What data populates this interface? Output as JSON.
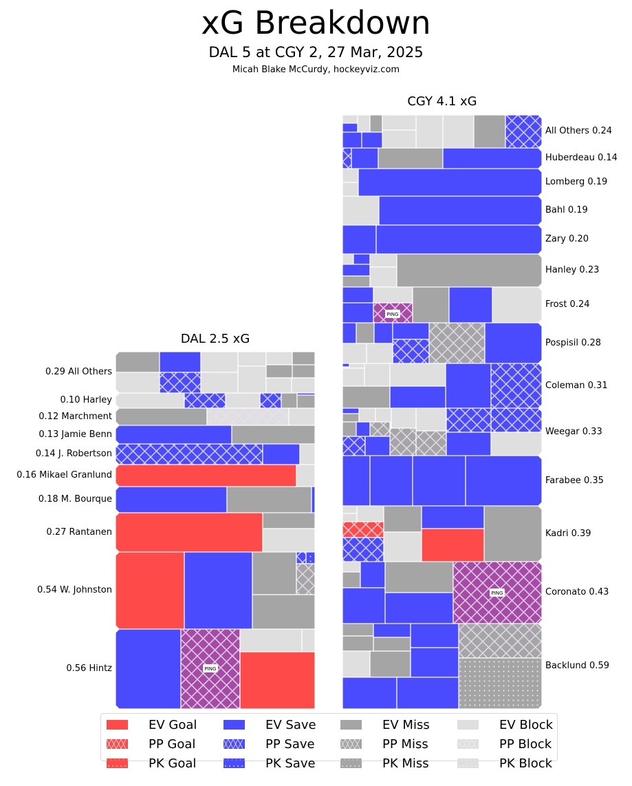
{
  "header": {
    "title": "xG Breakdown",
    "subtitle": "DAL 5 at CGY 2, 27 Mar, 2025",
    "credit": "Micah Blake McCurdy, hockeyviz.com"
  },
  "colors": {
    "goal": "#ff4a4a",
    "save": "#4a4aff",
    "miss": "#a5a5a5",
    "block": "#dfdfdf",
    "penalty_drawn": "#a54aa5",
    "separator": "#ffffff"
  },
  "chart_data": [
    {
      "type": "treemap",
      "title": "DAL 2.5 xG",
      "team": "DAL",
      "total_xg": 2.5,
      "label_side": "left",
      "players": [
        {
          "name": "All Others",
          "xg": 0.29,
          "label": "0.29 All Others"
        },
        {
          "name": "Harley",
          "xg": 0.1,
          "label": "0.10 Harley"
        },
        {
          "name": "Marchment",
          "xg": 0.12,
          "label": "0.12 Marchment"
        },
        {
          "name": "Jamie Benn",
          "xg": 0.13,
          "label": "0.13 Jamie Benn"
        },
        {
          "name": "J. Robertson",
          "xg": 0.14,
          "label": "0.14 J. Robertson"
        },
        {
          "name": "Mikael Granlund",
          "xg": 0.16,
          "label": "0.16 Mikael Granlund"
        },
        {
          "name": "M. Bourque",
          "xg": 0.18,
          "label": "0.18 M. Bourque"
        },
        {
          "name": "Rantanen",
          "xg": 0.27,
          "label": "0.27 Rantanen"
        },
        {
          "name": "W. Johnston",
          "xg": 0.54,
          "label": "0.54 W. Johnston"
        },
        {
          "name": "Hintz",
          "xg": 0.56,
          "label": "0.56 Hintz"
        }
      ],
      "annotations": [
        {
          "player": "Hintz",
          "text": "PING"
        }
      ]
    },
    {
      "type": "treemap",
      "title": "CGY 4.1 xG",
      "team": "CGY",
      "total_xg": 4.1,
      "label_side": "right",
      "players": [
        {
          "name": "All Others",
          "xg": 0.24,
          "label": "All Others 0.24"
        },
        {
          "name": "Huberdeau",
          "xg": 0.14,
          "label": "Huberdeau 0.14"
        },
        {
          "name": "Lomberg",
          "xg": 0.19,
          "label": "Lomberg 0.19"
        },
        {
          "name": "Bahl",
          "xg": 0.19,
          "label": "Bahl 0.19"
        },
        {
          "name": "Zary",
          "xg": 0.2,
          "label": "Zary 0.20"
        },
        {
          "name": "Hanley",
          "xg": 0.23,
          "label": "Hanley 0.23"
        },
        {
          "name": "Frost",
          "xg": 0.24,
          "label": "Frost 0.24"
        },
        {
          "name": "Pospisil",
          "xg": 0.28,
          "label": "Pospisil 0.28"
        },
        {
          "name": "Coleman",
          "xg": 0.31,
          "label": "Coleman 0.31"
        },
        {
          "name": "Weegar",
          "xg": 0.33,
          "label": "Weegar 0.33"
        },
        {
          "name": "Farabee",
          "xg": 0.35,
          "label": "Farabee 0.35"
        },
        {
          "name": "Kadri",
          "xg": 0.39,
          "label": "Kadri 0.39"
        },
        {
          "name": "Coronato",
          "xg": 0.43,
          "label": "Coronato 0.43"
        },
        {
          "name": "Backlund",
          "xg": 0.59,
          "label": "Backlund 0.59"
        }
      ],
      "annotations": [
        {
          "player": "Frost",
          "text": "PING"
        },
        {
          "player": "Coronato",
          "text": "PING"
        }
      ]
    }
  ],
  "legend": {
    "items": [
      {
        "label": "EV Goal",
        "outcome": "goal",
        "state": "EV"
      },
      {
        "label": "PP Goal",
        "outcome": "goal",
        "state": "PP"
      },
      {
        "label": "PK Goal",
        "outcome": "goal",
        "state": "PK"
      },
      {
        "label": "EV Save",
        "outcome": "save",
        "state": "EV"
      },
      {
        "label": "PP Save",
        "outcome": "save",
        "state": "PP"
      },
      {
        "label": "PK Save",
        "outcome": "save",
        "state": "PK"
      },
      {
        "label": "EV Miss",
        "outcome": "miss",
        "state": "EV"
      },
      {
        "label": "PP Miss",
        "outcome": "miss",
        "state": "PP"
      },
      {
        "label": "PK Miss",
        "outcome": "miss",
        "state": "PK"
      },
      {
        "label": "EV Block",
        "outcome": "block",
        "state": "EV"
      },
      {
        "label": "PP Block",
        "outcome": "block",
        "state": "PP"
      },
      {
        "label": "PK Block",
        "outcome": "block",
        "state": "PK"
      }
    ]
  }
}
